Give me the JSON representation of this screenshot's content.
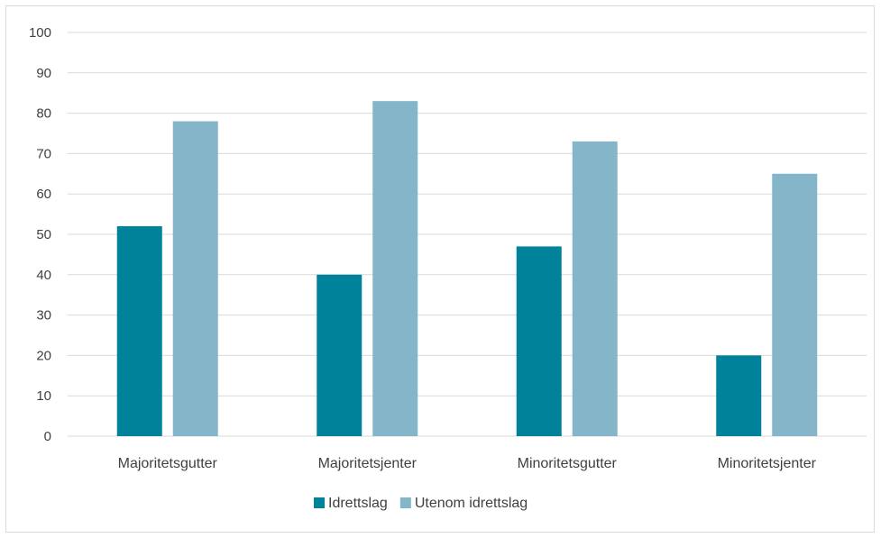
{
  "chart_data": {
    "type": "bar",
    "categories": [
      "Majoritetsgutter",
      "Majoritetsjenter",
      "Minoritetsgutter",
      "Minoritetsjenter"
    ],
    "series": [
      {
        "name": "Idrettslag",
        "values": [
          52,
          40,
          47,
          20
        ],
        "color": "#00829b"
      },
      {
        "name": "Utenom idrettslag",
        "values": [
          78,
          83,
          73,
          65
        ],
        "color": "#85b5c8"
      }
    ],
    "ylim": [
      0,
      100
    ],
    "yticks": [
      0,
      10,
      20,
      30,
      40,
      50,
      60,
      70,
      80,
      90,
      100
    ],
    "grid": true,
    "legend_position": "bottom",
    "title": "",
    "xlabel": "",
    "ylabel": ""
  }
}
